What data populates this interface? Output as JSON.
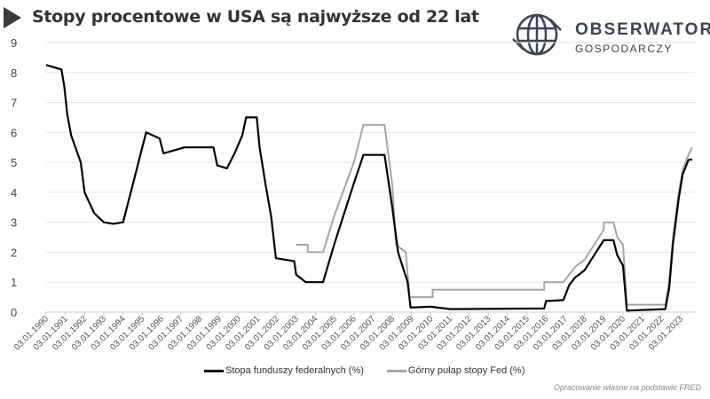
{
  "title": "Stopy procentowe w USA są najwyższe od 22 lat",
  "logo": {
    "line1": "OBSERWATOR",
    "line2": "GOSPODARCZY"
  },
  "source": "Opracowanie własne na podstawie FRED",
  "chart_data": {
    "type": "line",
    "title": "Stopy procentowe w USA są najwyższe od 22 lat",
    "ylim": [
      0,
      9
    ],
    "yticks": [
      0,
      1,
      2,
      3,
      4,
      5,
      6,
      7,
      8,
      9
    ],
    "xlim": [
      1990,
      2023.6
    ],
    "grid": "horizontal",
    "legend_placement": "bottom",
    "xtick_labels": [
      "03.01.1990",
      "03.01.1991",
      "03.01.1992",
      "03.01.1993",
      "03.01.1994",
      "03.01.1995",
      "03.01.1996",
      "03.01.1997",
      "03.01.1998",
      "03.01.1999",
      "03.01.2000",
      "03.01.2001",
      "03.01.2002",
      "03.01.2003",
      "03.01.2004",
      "03.01.2005",
      "03.01.2006",
      "03.01.2007",
      "03.01.2008",
      "03.01.2009",
      "03.01.2010",
      "03.01.2011",
      "03.01.2012",
      "03.01.2013",
      "03.01.2014",
      "03.01.2015",
      "03.01.2016",
      "03.01.2017",
      "03.01.2018",
      "03.01.2019",
      "03.01.2020",
      "03.01.2021",
      "03.01.2022",
      "03.01.2023"
    ],
    "series": [
      {
        "name": "Stopa funduszy federalnych (%)",
        "color": "#000000",
        "points": [
          [
            1990.0,
            8.25
          ],
          [
            1990.8,
            8.1
          ],
          [
            1990.95,
            7.5
          ],
          [
            1991.1,
            6.6
          ],
          [
            1991.3,
            5.9
          ],
          [
            1991.8,
            5.0
          ],
          [
            1992.0,
            4.0
          ],
          [
            1992.5,
            3.3
          ],
          [
            1993.0,
            3.0
          ],
          [
            1993.5,
            2.95
          ],
          [
            1994.0,
            3.0
          ],
          [
            1994.2,
            3.5
          ],
          [
            1994.6,
            4.5
          ],
          [
            1995.0,
            5.5
          ],
          [
            1995.2,
            6.0
          ],
          [
            1995.9,
            5.8
          ],
          [
            1996.1,
            5.3
          ],
          [
            1997.2,
            5.5
          ],
          [
            1998.7,
            5.5
          ],
          [
            1998.9,
            4.9
          ],
          [
            1999.4,
            4.8
          ],
          [
            1999.8,
            5.3
          ],
          [
            2000.2,
            5.9
          ],
          [
            2000.4,
            6.5
          ],
          [
            2000.95,
            6.5
          ],
          [
            2001.1,
            5.5
          ],
          [
            2001.4,
            4.3
          ],
          [
            2001.7,
            3.2
          ],
          [
            2001.95,
            1.8
          ],
          [
            2002.9,
            1.7
          ],
          [
            2003.0,
            1.25
          ],
          [
            2003.5,
            1.0
          ],
          [
            2004.4,
            1.0
          ],
          [
            2005.0,
            2.3
          ],
          [
            2006.0,
            4.3
          ],
          [
            2006.5,
            5.25
          ],
          [
            2007.6,
            5.25
          ],
          [
            2008.0,
            3.5
          ],
          [
            2008.3,
            2.0
          ],
          [
            2008.8,
            1.0
          ],
          [
            2008.95,
            0.15
          ],
          [
            2010.0,
            0.18
          ],
          [
            2011.0,
            0.1
          ],
          [
            2015.9,
            0.12
          ],
          [
            2016.0,
            0.37
          ],
          [
            2016.9,
            0.4
          ],
          [
            2017.2,
            0.9
          ],
          [
            2017.5,
            1.15
          ],
          [
            2018.0,
            1.4
          ],
          [
            2018.5,
            1.9
          ],
          [
            2019.0,
            2.4
          ],
          [
            2019.5,
            2.4
          ],
          [
            2019.7,
            1.9
          ],
          [
            2020.0,
            1.55
          ],
          [
            2020.2,
            0.05
          ],
          [
            2022.2,
            0.1
          ],
          [
            2022.4,
            0.8
          ],
          [
            2022.6,
            2.3
          ],
          [
            2022.9,
            3.8
          ],
          [
            2023.1,
            4.6
          ],
          [
            2023.4,
            5.08
          ],
          [
            2023.6,
            5.1
          ]
        ]
      },
      {
        "name": "Górny pułap stopy Fed (%)",
        "color": "#a6a6a6",
        "points": [
          [
            2003.0,
            2.25
          ],
          [
            2003.6,
            2.25
          ],
          [
            2003.6,
            2.0
          ],
          [
            2004.4,
            2.0
          ],
          [
            2005.0,
            3.25
          ],
          [
            2006.0,
            5.0
          ],
          [
            2006.5,
            6.25
          ],
          [
            2007.6,
            6.25
          ],
          [
            2008.0,
            4.25
          ],
          [
            2008.2,
            2.25
          ],
          [
            2008.7,
            2.0
          ],
          [
            2008.9,
            0.5
          ],
          [
            2010.1,
            0.5
          ],
          [
            2010.1,
            0.75
          ],
          [
            2015.9,
            0.75
          ],
          [
            2015.9,
            1.0
          ],
          [
            2016.9,
            1.0
          ],
          [
            2017.2,
            1.25
          ],
          [
            2017.5,
            1.5
          ],
          [
            2018.0,
            1.75
          ],
          [
            2018.5,
            2.25
          ],
          [
            2019.0,
            2.75
          ],
          [
            2019.0,
            3.0
          ],
          [
            2019.5,
            3.0
          ],
          [
            2019.7,
            2.5
          ],
          [
            2020.0,
            2.25
          ],
          [
            2020.2,
            0.25
          ],
          [
            2022.2,
            0.25
          ],
          [
            2022.4,
            1.0
          ],
          [
            2022.6,
            2.5
          ],
          [
            2022.9,
            4.0
          ],
          [
            2023.1,
            4.75
          ],
          [
            2023.4,
            5.25
          ],
          [
            2023.6,
            5.5
          ]
        ]
      }
    ]
  }
}
